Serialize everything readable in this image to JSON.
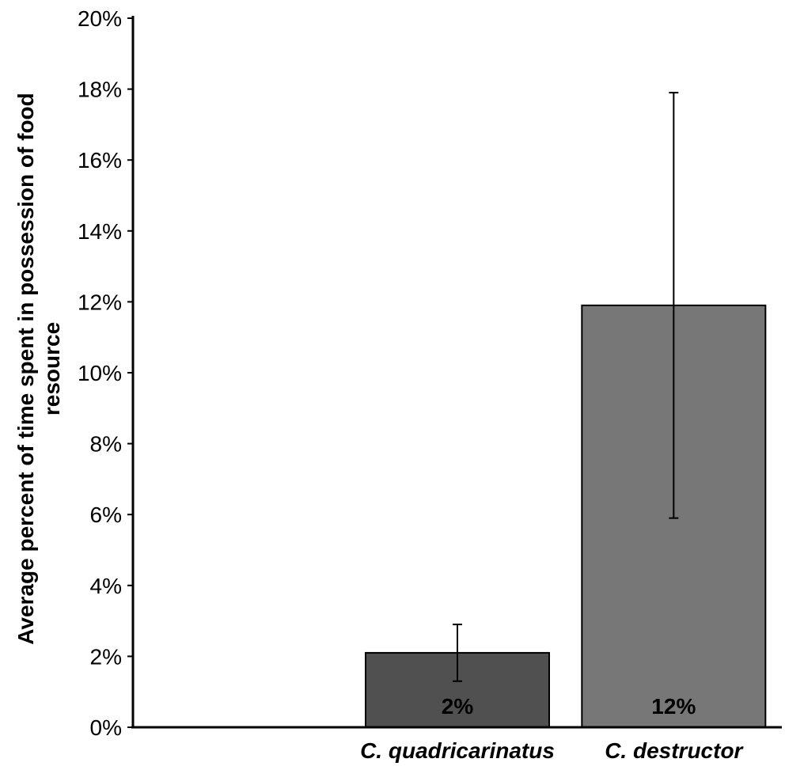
{
  "chart_data": {
    "type": "bar",
    "title": "",
    "xlabel": "",
    "ylabel": {
      "line1": "Average percent of time spent in possession of food",
      "line2": "resource"
    },
    "ylim": [
      0,
      20
    ],
    "yticks": [
      "0%",
      "2%",
      "4%",
      "6%",
      "8%",
      "10%",
      "12%",
      "14%",
      "16%",
      "18%",
      "20%"
    ],
    "grid": false,
    "legend": "none",
    "categories": [
      "",
      "C. quadricarinatus",
      "C. destructor"
    ],
    "values": [
      null,
      2.1,
      11.9
    ],
    "error_low": [
      null,
      1.3,
      5.9
    ],
    "error_high": [
      null,
      2.9,
      17.9
    ],
    "data_labels": [
      "",
      "2%",
      "12%"
    ],
    "colors": [
      "#ffffff",
      "#505050",
      "#777777"
    ]
  }
}
